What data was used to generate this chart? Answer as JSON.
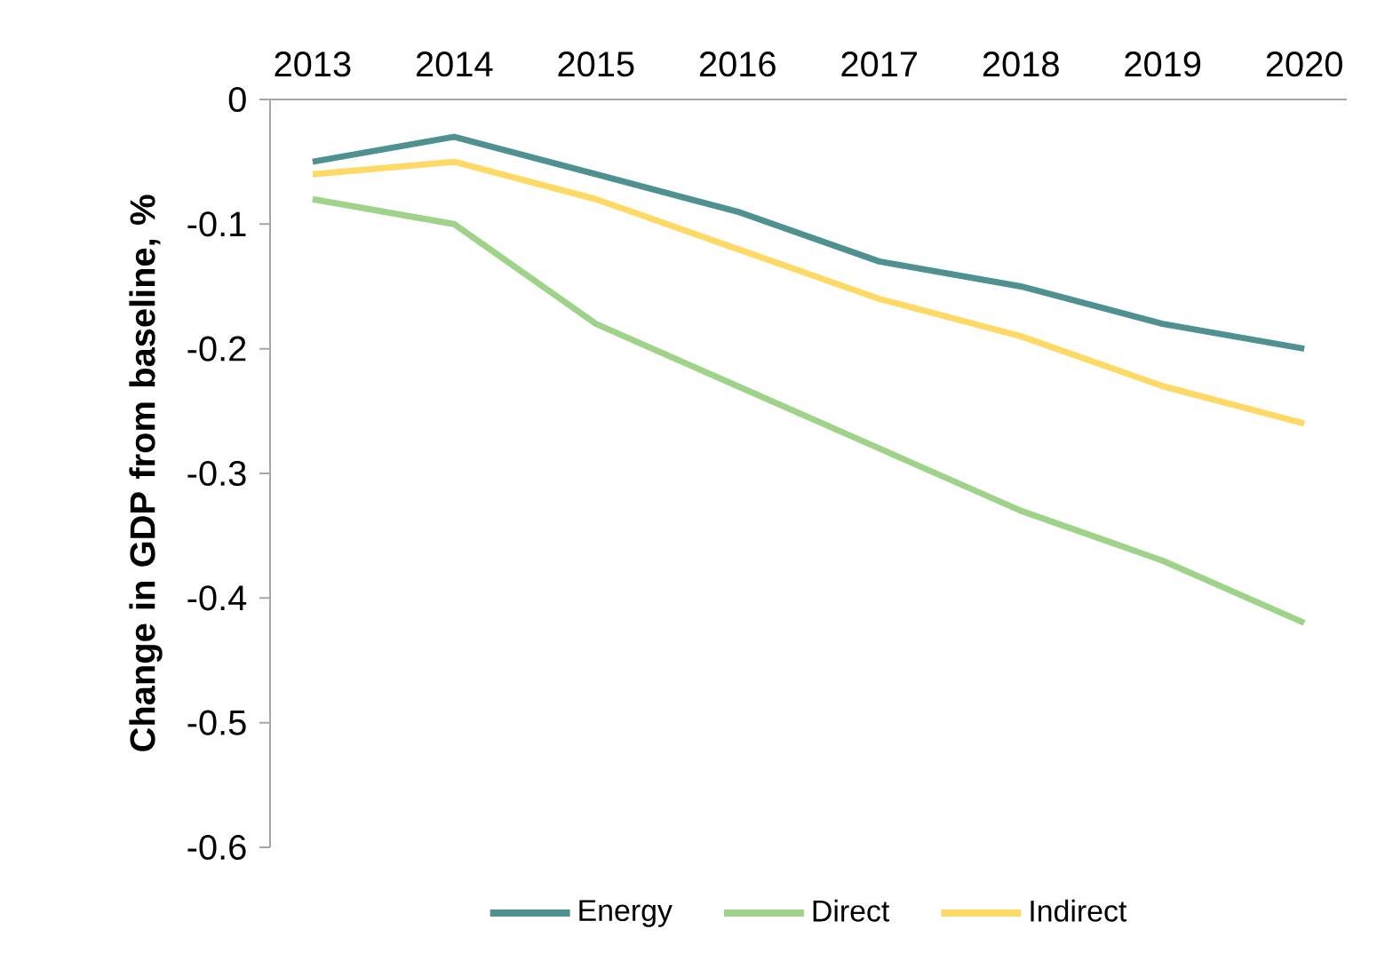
{
  "chart_data": {
    "type": "line",
    "ylabel": "Change in GDP from baseline, %",
    "categories": [
      "2013",
      "2014",
      "2015",
      "2016",
      "2017",
      "2018",
      "2019",
      "2020"
    ],
    "series": [
      {
        "name": "Energy",
        "color": "#4f9191",
        "values": [
          -0.05,
          -0.03,
          -0.06,
          -0.09,
          -0.13,
          -0.15,
          -0.18,
          -0.2
        ]
      },
      {
        "name": "Direct",
        "color": "#9fd38a",
        "values": [
          -0.08,
          -0.1,
          -0.18,
          -0.23,
          -0.28,
          -0.33,
          -0.37,
          -0.42
        ]
      },
      {
        "name": "Indirect",
        "color": "#ffd966",
        "values": [
          -0.06,
          -0.05,
          -0.08,
          -0.12,
          -0.16,
          -0.19,
          -0.23,
          -0.26
        ]
      }
    ],
    "ylim": [
      -0.6,
      0
    ],
    "yticks": [
      -0.6,
      -0.5,
      -0.4,
      -0.3,
      -0.2,
      -0.1,
      0
    ],
    "grid": false,
    "legend": "bottom",
    "line_style": "solid"
  }
}
